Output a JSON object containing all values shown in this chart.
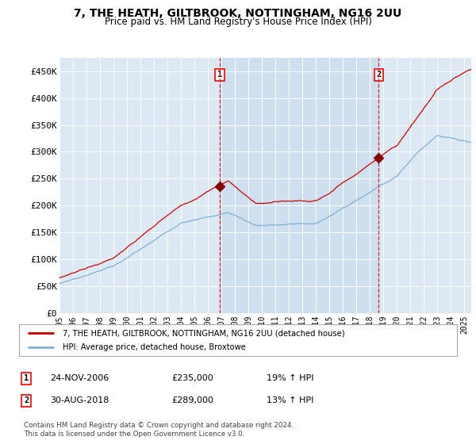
{
  "title": "7, THE HEATH, GILTBROOK, NOTTINGHAM, NG16 2UU",
  "subtitle": "Price paid vs. HM Land Registry's House Price Index (HPI)",
  "background_color": "#ffffff",
  "plot_bg_color": "#dce9f5",
  "shade_color": "#c5d9ee",
  "hpi_color": "#7fb0d8",
  "price_color": "#cc0000",
  "marker_line_color": "#dd0000",
  "legend_line1": "7, THE HEATH, GILTBROOK, NOTTINGHAM, NG16 2UU (detached house)",
  "legend_line2": "HPI: Average price, detached house, Broxtowe",
  "footer": "Contains HM Land Registry data © Crown copyright and database right 2024.\nThis data is licensed under the Open Government Licence v3.0.",
  "ylim": [
    0,
    475000
  ],
  "yticks": [
    0,
    50000,
    100000,
    150000,
    200000,
    250000,
    300000,
    350000,
    400000,
    450000
  ],
  "ytick_labels": [
    "£0",
    "£50K",
    "£100K",
    "£150K",
    "£200K",
    "£250K",
    "£300K",
    "£350K",
    "£400K",
    "£450K"
  ],
  "xlim_start": 1995.0,
  "xlim_end": 2025.5,
  "sale1_year": 2006.9,
  "sale2_year": 2018.67,
  "sale1_price": 235000,
  "sale2_price": 289000,
  "sale1_label": "1",
  "sale2_label": "2",
  "sale1_info_date": "24-NOV-2006",
  "sale1_info_price": "£235,000",
  "sale1_info_hpi": "19% ↑ HPI",
  "sale2_info_date": "30-AUG-2018",
  "sale2_info_price": "£289,000",
  "sale2_info_hpi": "13% ↑ HPI"
}
